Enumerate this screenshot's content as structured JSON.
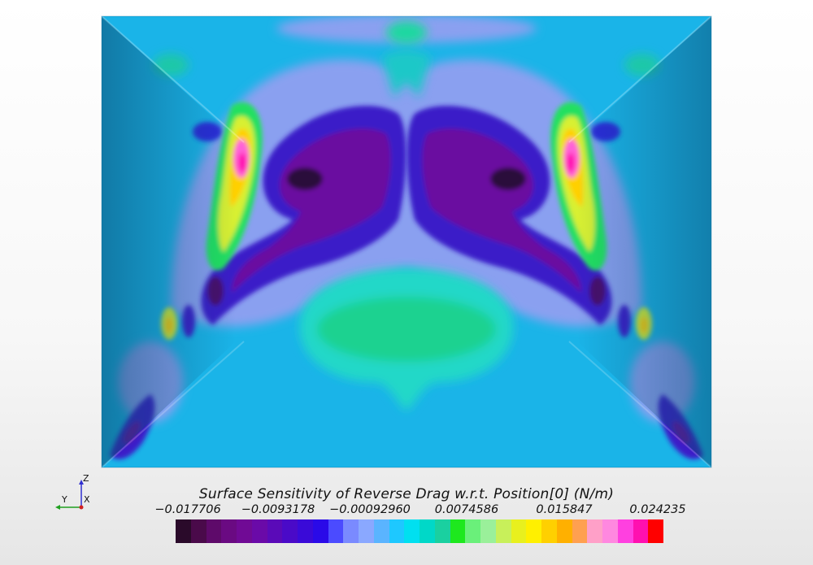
{
  "legend": {
    "title": "Surface Sensitivity of Reverse Drag w.r.t. Position[0] (N/m)",
    "ticks": [
      "−0.017706",
      "−0.0093178",
      "−0.00092960",
      "0.0074586",
      "0.015847",
      "0.024235"
    ],
    "tick_values": [
      -0.017706,
      -0.0093178,
      -0.0009296,
      0.0074586,
      0.015847,
      0.024235
    ],
    "range": [
      -0.017706,
      0.024235
    ],
    "colors": [
      "#2a0a2a",
      "#4a0a4a",
      "#5e0a6a",
      "#6a0a82",
      "#700a95",
      "#6a0aa8",
      "#5a0ab8",
      "#4a0ac8",
      "#3a0ad8",
      "#2a0ae8",
      "#4b4bff",
      "#7a8aff",
      "#8aa8ff",
      "#5ab4ff",
      "#1ec8ff",
      "#00e0f0",
      "#00d8c8",
      "#1ad0a0",
      "#1ee81e",
      "#6af07a",
      "#9af09a",
      "#c8f05a",
      "#e8f01e",
      "#fff000",
      "#ffd000",
      "#ffb000",
      "#ffa050",
      "#ffa0c8",
      "#ff88e0",
      "#ff40e0",
      "#ff10b0",
      "#ff0000"
    ]
  },
  "axes": {
    "z": "Z",
    "y": "Y",
    "x": "X"
  },
  "colors": {
    "base": "#1ab4e8",
    "low_dark": "#3a0a4a",
    "low": "#3a1ac8",
    "mid": "#1ecfb0",
    "high": "#ffe81e",
    "peak": "#ff20c8"
  }
}
